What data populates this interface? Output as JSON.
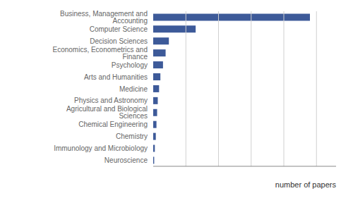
{
  "chart_data": {
    "type": "bar",
    "orientation": "horizontal",
    "categories": [
      "Neuroscience",
      "Immunology and Microbiology",
      "Chemistry",
      "Chemical Engineering",
      "Agricultural and Biological Sciences",
      "Physics and Astronomy",
      "Medicine",
      "Arts and Humanities",
      "Psychology",
      "Economics, Econometrics and Finance",
      "Decision Sciences",
      "Computer Science",
      "Business, Management and Accounting"
    ],
    "values": [
      3,
      5,
      8,
      10,
      12,
      14,
      18,
      22,
      30,
      38,
      48,
      130,
      480
    ],
    "color": "#3d5a99",
    "xlabel": "number of papers",
    "xlim": [
      0,
      560
    ],
    "xticks": [
      100,
      200,
      300,
      400,
      500
    ],
    "grid": true,
    "tick_labels": "y"
  }
}
